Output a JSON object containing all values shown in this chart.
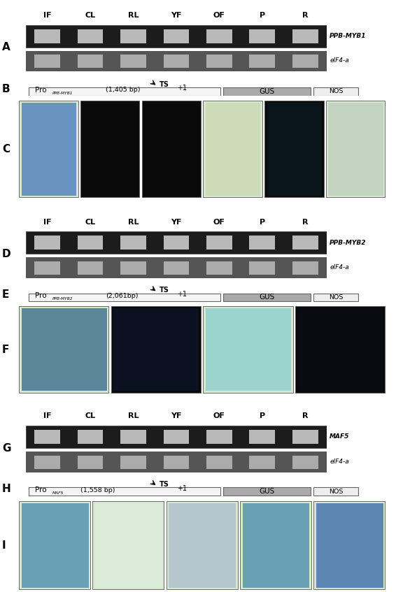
{
  "panel_labels": [
    "A",
    "B",
    "C",
    "D",
    "E",
    "F",
    "G",
    "H",
    "I"
  ],
  "sample_labels": [
    "IF",
    "CL",
    "RL",
    "YF",
    "OF",
    "P",
    "R"
  ],
  "gene_labels_1": [
    "PPB-MYB1",
    "eIF4-a"
  ],
  "gene_labels_2": [
    "PPB-MYB2",
    "eIF4-a"
  ],
  "gene_labels_3": [
    "MAF5",
    "eIF4-a"
  ],
  "promoter_1_sub": "PPB-MYB1",
  "promoter_1_bp": "(1,405 bp)",
  "promoter_2_sub": "PPB-MYB2",
  "promoter_2_bp": "(2,061bp)",
  "promoter_3_sub": "MAF5",
  "promoter_3_bp": "(1,558 bp)",
  "figure_bg": "#ffffff",
  "gel_dark_bg": "#1c1c1c",
  "gel_light_bg": "#888888",
  "gel_border": "#444444",
  "band_bright": "#d8d8d8",
  "band_mid": "#b0b0b0",
  "pro_box_color": "#f5f5f5",
  "gus_box_color": "#aaaaaa",
  "nos_box_color": "#eeeeee",
  "box_border": "#666666",
  "sec1_photo_colors": [
    "#4477bb",
    "#0a0a0a",
    "#0a0a0a",
    "#c8d8b0",
    "#0a1a22",
    "#bbccbb"
  ],
  "sec2_photo_colors": [
    "#336688",
    "#0a1428",
    "#88cccc",
    "#0a0a14"
  ],
  "sec3_photo_colors": [
    "#4488aa",
    "#ddeedd",
    "#aabbcc",
    "#4488aa",
    "#3366aa"
  ],
  "sec1_photo_dark": [
    false,
    true,
    true,
    false,
    true,
    false
  ],
  "sec2_photo_dark": [
    false,
    true,
    false,
    true
  ],
  "sec3_photo_dark": [
    false,
    false,
    false,
    false,
    false
  ]
}
